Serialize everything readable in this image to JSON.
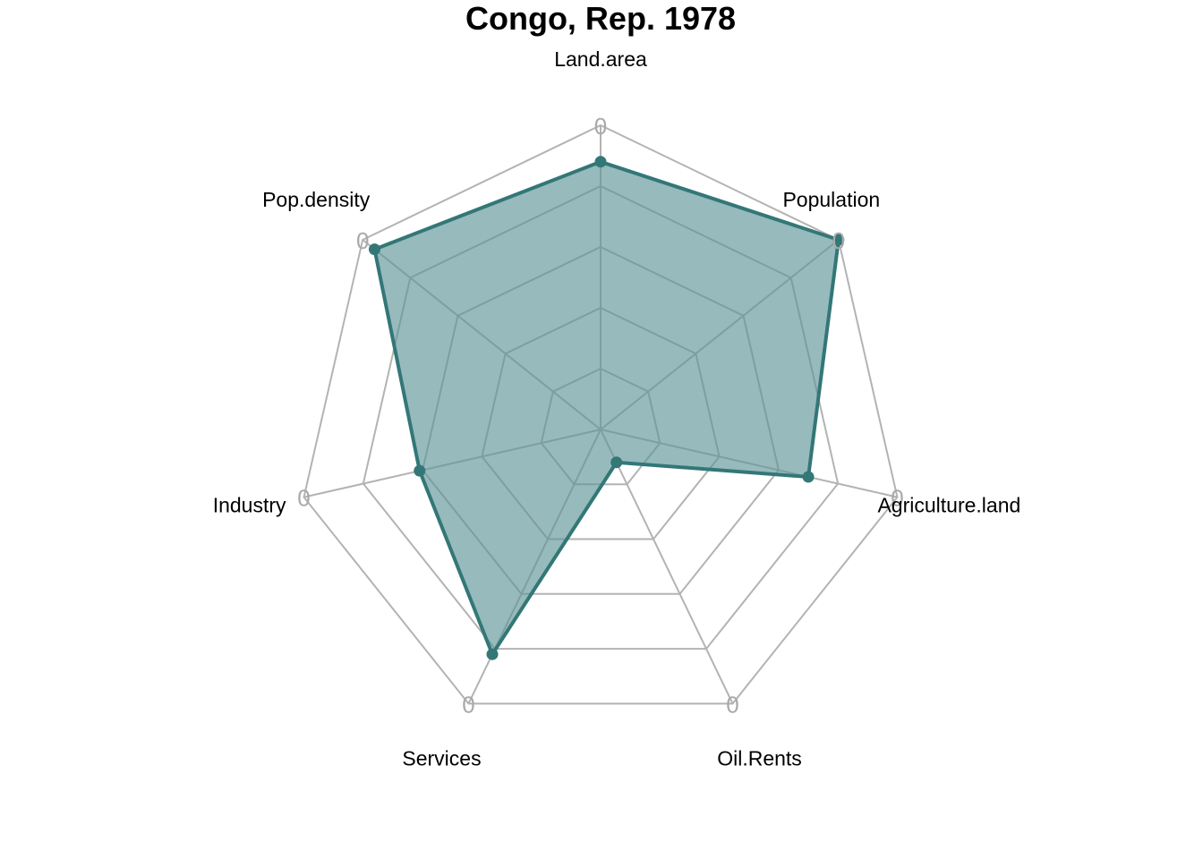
{
  "chart_data": {
    "type": "radar",
    "title": "Congo, Rep. 1978",
    "axes": [
      "Land.area",
      "Population",
      "Agriculture.land",
      "Oil.Rents",
      "Services",
      "Industry",
      "Pop.density"
    ],
    "tick_labels": [
      "0",
      "0",
      "0",
      "0",
      "0",
      "0",
      "0"
    ],
    "series": [
      {
        "values": [
          0.88,
          1.0,
          0.7,
          0.12,
          0.82,
          0.61,
          0.95
        ]
      }
    ],
    "rlim": [
      0,
      1
    ],
    "grid_levels": 5,
    "grid": true,
    "legend": "none"
  },
  "colors": {
    "series_line": "#337777",
    "series_fill": "#5f9598",
    "grid_outer": "#b3b3b3",
    "grid_inner": "#7f9c9c",
    "zero_label": "#aaaaaa"
  }
}
